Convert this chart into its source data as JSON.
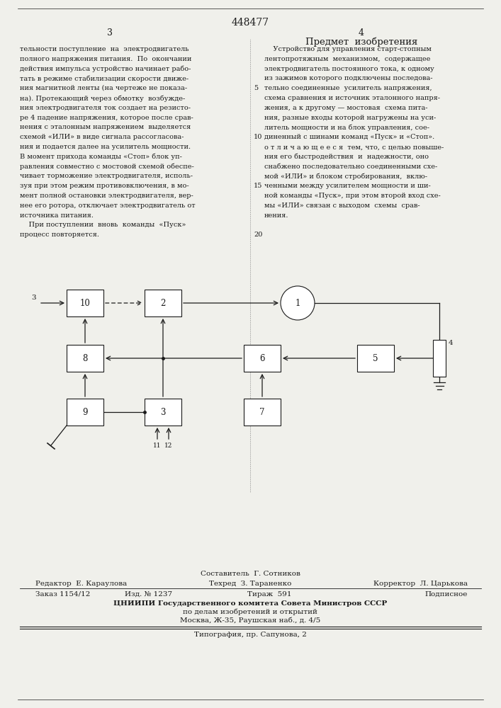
{
  "bg_color": "#f0f0eb",
  "text_color": "#1a1a1a",
  "patent_number": "448477",
  "page_left": "3",
  "page_right": "4",
  "section_title": "Предмет  изобретения",
  "left_text": [
    "тельности поступление  на  электродвигатель",
    "полного напряжения питания.  По  окончании",
    "действия импульса устройство начинает рабо-",
    "тать в режиме стабилизации скорости движе-",
    "ния магнитной ленты (на чертеже не показа-",
    "на). Протекающий через обмотку  возбужде-",
    "ния электродвигателя ток создает на резисто-",
    "ре 4 падение напряжения, которое после срав-",
    "нения с эталонным напряжением  выделяется",
    "схемой «ИЛИ» в виде сигнала рассогласова-",
    "ния и подается далее на усилитель мощности.",
    "В момент прихода команды «Стоп» блок уп-",
    "равления совместно с мостовой схемой обеспе-",
    "чивает торможение электродвигателя, исполь-",
    "зуя при этом режим противовключения, в мо-",
    "мент полной остановки электродвигателя, вер-",
    "нее его ротора, отключает электродвигатель от",
    "источника питания.",
    "    При поступлении  вновь  команды  «Пуск»",
    "процесс повторяется."
  ],
  "right_text": [
    "    Устройство для управления старт-стопным",
    "лентопротяжным  механизмом,  содержащее",
    "электродвигатель постоянного тока, к одному",
    "из зажимов которого подключены последова-",
    "тельно соединенные  усилитель напряжения,",
    "схема сравнения и источник эталонного напря-",
    "жения, а к другому — мостовая  схема пита-",
    "ния, разные входы которой нагружены на уси-",
    "литель мощности и на блок управления, сое-",
    "диненный с шинами команд «Пуск» и «Стоп».",
    "о т л и ч а ю щ е е с я  тем, что, с целью повыше-",
    "ния его быстродействия  и  надежности, оно",
    "снабжено последовательно соединенными схе-",
    "мой «ИЛИ» и блоком стробирования,  вклю-",
    "ченными между усилителем мощности и ши-",
    "ной команды «Пуск», при этом второй вход схе-",
    "мы «ИЛИ» связан с выходом  схемы  срав-",
    "нения."
  ],
  "footer_sestavitel": "Составитель  Г. Сотников",
  "footer_redaktor": "Редактор  Е. Караулова",
  "footer_tehred": "Техред  З. Тараненко",
  "footer_korrektor": "Корректор  Л. Царькова",
  "footer_zakaz": "Заказ 1154/12",
  "footer_izd": "Изд. № 1237",
  "footer_tirazh": "Тираж  591",
  "footer_podpisnoe": "Подписное",
  "footer_cniippi": "ЦНИИПИ Государственного комитета Совета Министров СССР",
  "footer_dela": "по делам изобретений и открытий",
  "footer_moskva": "Москва, Ж-35, Раушская наб., д. 4/5",
  "footer_tipografia": "Типография, пр. Сапунова, 2"
}
